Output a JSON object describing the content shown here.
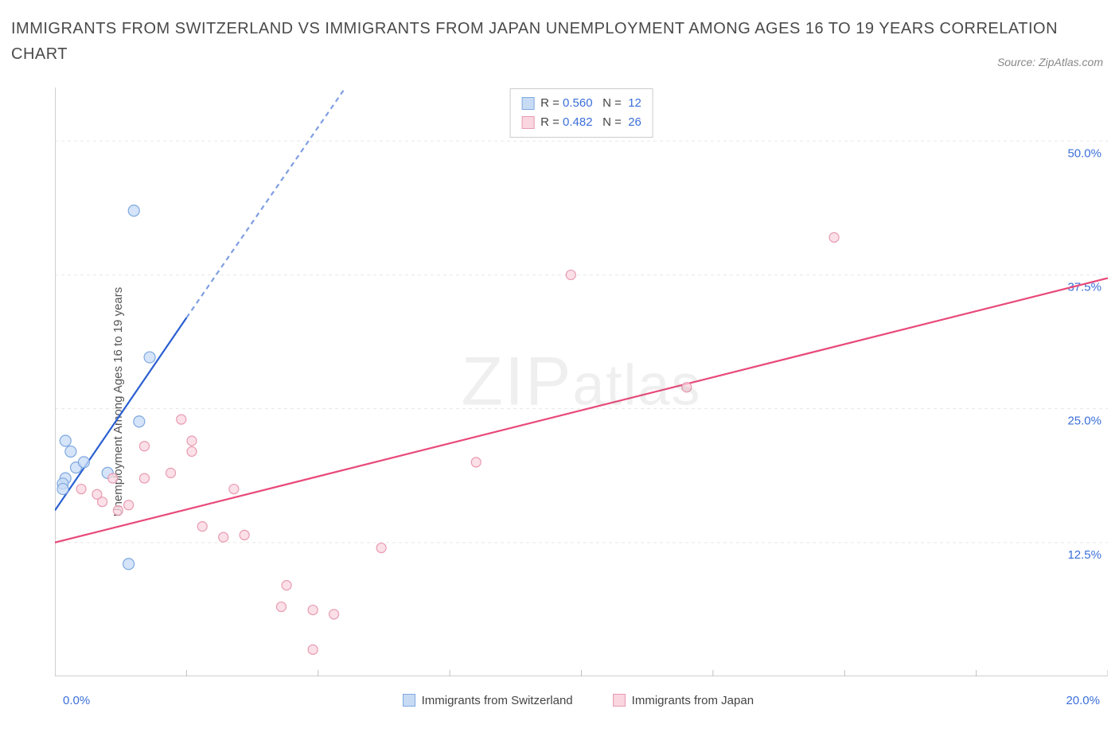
{
  "title": "IMMIGRANTS FROM SWITZERLAND VS IMMIGRANTS FROM JAPAN UNEMPLOYMENT AMONG AGES 16 TO 19 YEARS CORRELATION CHART",
  "source": "Source: ZipAtlas.com",
  "y_axis_label": "Unemployment Among Ages 16 to 19 years",
  "x_min_label": "0.0%",
  "x_max_label": "20.0%",
  "watermark_text": "ZIPatlas",
  "chart": {
    "type": "scatter",
    "xlim": [
      0,
      20
    ],
    "ylim": [
      0,
      55
    ],
    "y_ticks": [
      12.5,
      25.0,
      37.5,
      50.0
    ],
    "y_tick_labels": [
      "12.5%",
      "25.0%",
      "37.5%",
      "50.0%"
    ],
    "x_ticks": [
      0,
      2.5,
      5,
      7.5,
      10,
      12.5,
      15,
      17.5,
      20
    ],
    "grid_color": "#e8e8e8",
    "axis_color": "#bfbfbf",
    "background_color": "#ffffff",
    "marker_radius": 7,
    "marker_radius_small": 6,
    "marker_stroke_width": 1.2,
    "line_width": 2.2
  },
  "series": [
    {
      "name": "Immigrants from Switzerland",
      "color_fill": "#c7dbf5",
      "color_stroke": "#7ea8e0",
      "line_color": "#2a5fd0",
      "R": "0.560",
      "N": "12",
      "points": [
        [
          1.5,
          43.5
        ],
        [
          0.2,
          22.0
        ],
        [
          0.3,
          21.0
        ],
        [
          0.4,
          19.5
        ],
        [
          0.2,
          18.5
        ],
        [
          0.15,
          18.0
        ],
        [
          0.55,
          20.0
        ],
        [
          1.0,
          19.0
        ],
        [
          0.15,
          17.5
        ],
        [
          1.6,
          23.8
        ],
        [
          1.8,
          29.8
        ],
        [
          1.4,
          10.5
        ]
      ],
      "regression": {
        "x1": 0,
        "y1": 15.5,
        "x2_solid": 2.5,
        "y2_solid": 33.5,
        "x2_dash": 5.8,
        "y2_dash": 57
      }
    },
    {
      "name": "Immigrants from Japan",
      "color_fill": "#f9d6e0",
      "color_stroke": "#e89ab1",
      "line_color": "#e84a7a",
      "R": "0.482",
      "N": "26",
      "points": [
        [
          14.8,
          41.0
        ],
        [
          9.8,
          37.5
        ],
        [
          12.0,
          27.0
        ],
        [
          8.0,
          20.0
        ],
        [
          2.4,
          24.0
        ],
        [
          2.6,
          22.0
        ],
        [
          1.7,
          21.5
        ],
        [
          2.6,
          21.0
        ],
        [
          2.2,
          19.0
        ],
        [
          1.1,
          18.5
        ],
        [
          1.7,
          18.5
        ],
        [
          0.5,
          17.5
        ],
        [
          0.8,
          17.0
        ],
        [
          1.4,
          16.0
        ],
        [
          0.9,
          16.3
        ],
        [
          1.2,
          15.5
        ],
        [
          2.8,
          14.0
        ],
        [
          3.4,
          17.5
        ],
        [
          3.2,
          13.0
        ],
        [
          3.6,
          13.2
        ],
        [
          6.2,
          12.0
        ],
        [
          4.4,
          8.5
        ],
        [
          4.3,
          6.5
        ],
        [
          4.9,
          6.2
        ],
        [
          5.3,
          5.8
        ],
        [
          4.9,
          2.5
        ]
      ],
      "regression": {
        "x1": 0,
        "y1": 12.5,
        "x2_solid": 20,
        "y2_solid": 37.2,
        "x2_dash": 20,
        "y2_dash": 37.2
      }
    }
  ],
  "stats_box": {
    "rows": [
      {
        "swatch_fill": "#c7dbf5",
        "swatch_stroke": "#7ea8e0",
        "R": "0.560",
        "N": "12"
      },
      {
        "swatch_fill": "#f9d6e0",
        "swatch_stroke": "#e89ab1",
        "R": "0.482",
        "N": "26"
      }
    ]
  },
  "bottom_legend": [
    {
      "swatch_fill": "#c7dbf5",
      "swatch_stroke": "#7ea8e0",
      "label": "Immigrants from Switzerland"
    },
    {
      "swatch_fill": "#f9d6e0",
      "swatch_stroke": "#e89ab1",
      "label": "Immigrants from Japan"
    }
  ]
}
